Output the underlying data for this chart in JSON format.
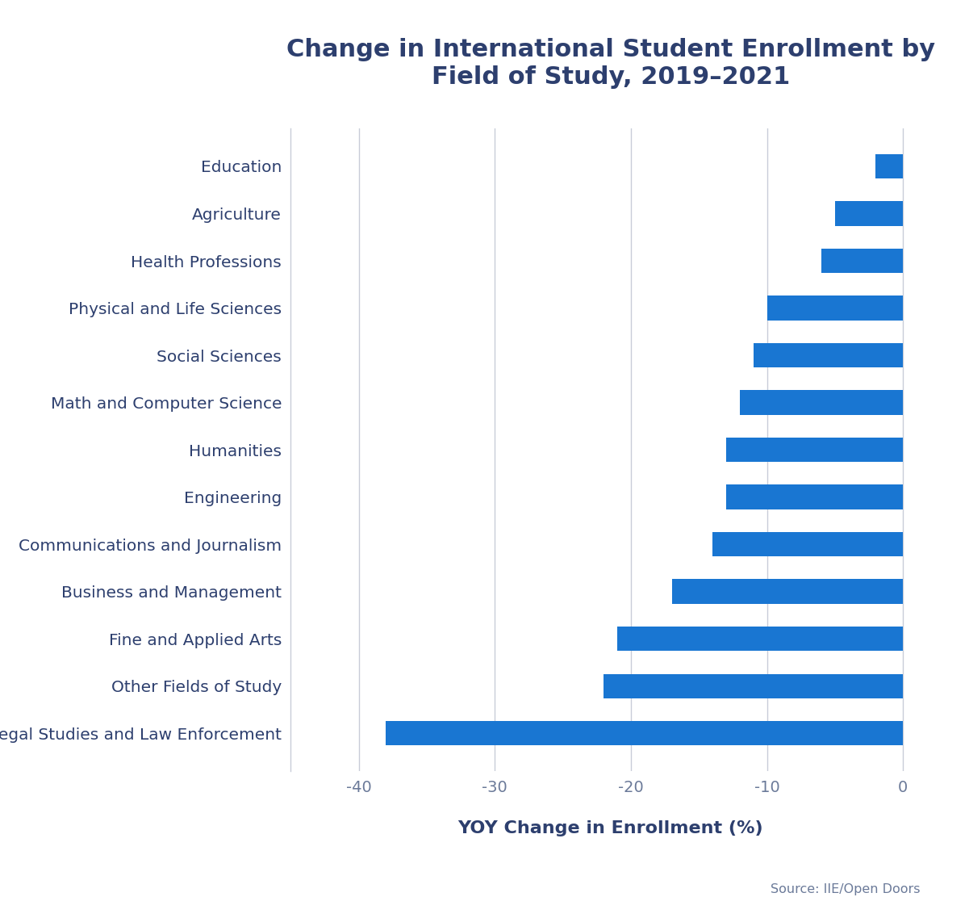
{
  "title": "Change in International Student Enrollment by\nField of Study, 2019–2021",
  "xlabel": "YOY Change in Enrollment (%)",
  "categories": [
    "Legal Studies and Law Enforcement",
    "Other Fields of Study",
    "Fine and Applied Arts",
    "Business and Management",
    "Communications and Journalism",
    "Engineering",
    "Humanities",
    "Math and Computer Science",
    "Social Sciences",
    "Physical and Life Sciences",
    "Health Professions",
    "Agriculture",
    "Education"
  ],
  "values": [
    -38,
    -22,
    -21,
    -17,
    -14,
    -13,
    -13,
    -12,
    -11,
    -10,
    -6,
    -5,
    -2
  ],
  "bar_color": "#1976D2",
  "xlim": [
    -45,
    2
  ],
  "xticks": [
    -40,
    -30,
    -20,
    -10,
    0
  ],
  "title_color": "#2d3f6e",
  "label_color": "#2d3f6e",
  "tick_color": "#6b7a99",
  "grid_color": "#c8ccd8",
  "source_text": "Source: IIE/Open Doors",
  "background_color": "#ffffff",
  "title_fontsize": 22,
  "label_fontsize": 16,
  "tick_fontsize": 14,
  "category_fontsize": 14.5
}
